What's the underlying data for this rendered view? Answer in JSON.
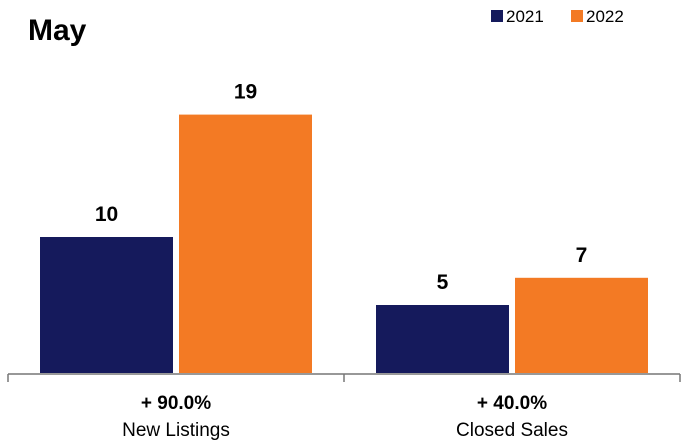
{
  "chart_data": {
    "type": "bar",
    "title": "May",
    "categories": [
      "New Listings",
      "Closed Sales"
    ],
    "changes": [
      "+ 90.0%",
      "+ 40.0%"
    ],
    "series": [
      {
        "name": "2021",
        "values": [
          10,
          5
        ],
        "color": "#151a5c"
      },
      {
        "name": "2022",
        "values": [
          19,
          7
        ],
        "color": "#f37a24"
      }
    ],
    "ylim": [
      0,
      22
    ],
    "legend_position": "top-right",
    "grid": false
  }
}
